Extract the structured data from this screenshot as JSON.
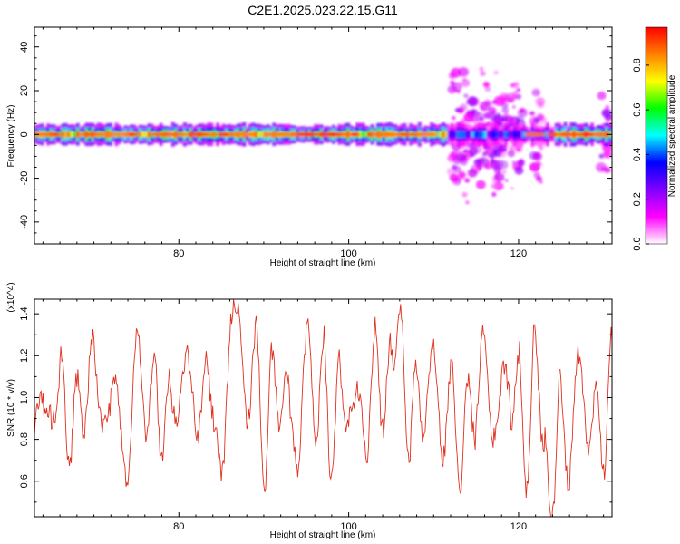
{
  "figure": {
    "title": "C2E1.2025.023.22.15.G11"
  },
  "chart_data": [
    {
      "type": "heatmap",
      "xlabel": "Height of straight line (km)",
      "ylabel": "Frequency (Hz)",
      "xlim": [
        63,
        131
      ],
      "ylim": [
        -50,
        49
      ],
      "xticks": [
        80,
        100,
        120
      ],
      "yticks": [
        -40,
        -20,
        0,
        20,
        40
      ],
      "colorbar": {
        "label": "Normalized spectral amplitude",
        "range": [
          0,
          0.97
        ],
        "ticks": [
          0.0,
          0.2,
          0.4,
          0.6,
          0.8
        ],
        "colormap": [
          "#ffffff",
          "#ff00ff",
          "#8000ff",
          "#0000ff",
          "#00ffff",
          "#00ff00",
          "#ffff00",
          "#ff8000",
          "#ff0000"
        ]
      },
      "features": [
        {
          "description": "continuous band centred at 0 Hz",
          "x_range": [
            63,
            131
          ],
          "frequency_halfwidth_hz": 4,
          "peak_amplitude": 0.97
        },
        {
          "description": "broad scattered spectral content",
          "x_range": [
            111,
            124
          ],
          "frequency_range_hz": [
            -40,
            35
          ],
          "typical_amplitude": 0.15
        }
      ]
    },
    {
      "type": "line",
      "xlabel": "Height of straight line (km)",
      "ylabel": "SNR (10 * v/v)",
      "y_multiplier": "(x10^4)",
      "xlim": [
        63,
        131
      ],
      "ylim": [
        0.43,
        1.47
      ],
      "xticks": [
        80,
        100,
        120
      ],
      "yticks": [
        0.6,
        0.8,
        1.0,
        1.2,
        1.4
      ],
      "series_color": "#e0301e",
      "series": [
        {
          "x": [
            63,
            64,
            65,
            66,
            67,
            68,
            69,
            70,
            71,
            72,
            73,
            74,
            75,
            76,
            77,
            78,
            79,
            80,
            81,
            82,
            83,
            84,
            85,
            86,
            87,
            88,
            89,
            90,
            91,
            92,
            93,
            94,
            95,
            96,
            97,
            98,
            99,
            100,
            101,
            102,
            103,
            104,
            105,
            106,
            107,
            108,
            109,
            110,
            111,
            112,
            113,
            114,
            115,
            116,
            117,
            118,
            119,
            120,
            121,
            122,
            123,
            124,
            125,
            126,
            127,
            128,
            129,
            130,
            131
          ],
          "values": [
            0.82,
            1.02,
            0.85,
            1.18,
            0.72,
            1.05,
            0.9,
            1.28,
            0.83,
            1.04,
            0.95,
            0.58,
            1.33,
            0.86,
            1.17,
            0.74,
            1.05,
            0.93,
            1.25,
            0.82,
            1.12,
            0.96,
            0.6,
            1.28,
            1.45,
            0.85,
            1.36,
            0.58,
            1.18,
            0.9,
            1.05,
            0.62,
            1.35,
            0.82,
            1.24,
            0.64,
            1.15,
            0.86,
            1.08,
            0.72,
            1.28,
            0.9,
            1.2,
            1.4,
            0.74,
            1.12,
            0.84,
            1.28,
            0.68,
            1.18,
            0.58,
            1.05,
            0.88,
            1.3,
            0.76,
            1.12,
            0.96,
            1.16,
            0.6,
            1.3,
            0.74,
            0.47,
            1.08,
            0.56,
            1.25,
            0.78,
            1.04,
            0.68,
            1.27
          ]
        }
      ]
    }
  ]
}
